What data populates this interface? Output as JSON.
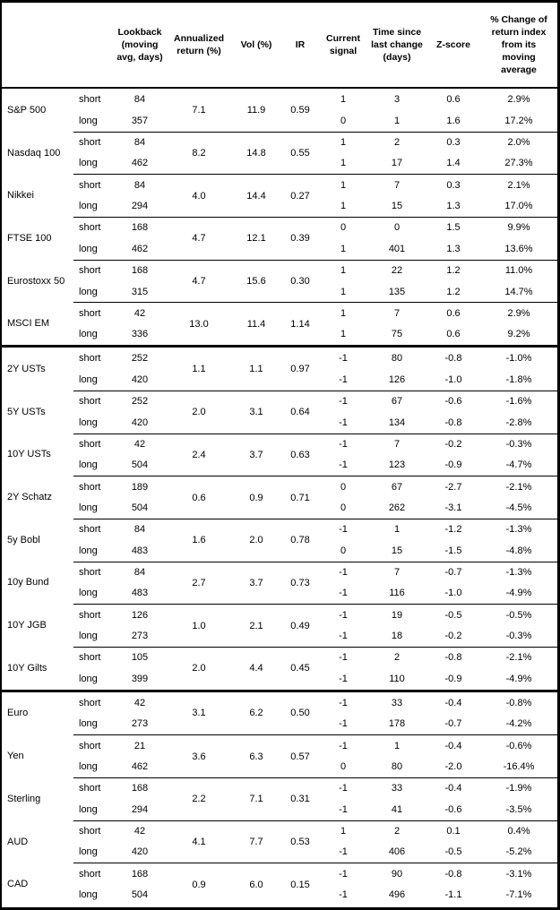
{
  "table": {
    "headers": {
      "asset": "",
      "horizon": "",
      "lookback": "Lookback\n(moving\navg, days)",
      "annualized_return": "Annualized\nreturn (%)",
      "vol": "Vol (%)",
      "ir": "IR",
      "current_signal": "Current\nsignal",
      "time_since": "Time since\nlast change\n(days)",
      "zscore": "Z-score",
      "pct_change": "% Change of\nreturn index\nfrom its\nmoving\naverage"
    },
    "row_labels": {
      "short": "short",
      "long": "long"
    },
    "sections": [
      {
        "id": "equities",
        "assets": [
          {
            "name": "S&P 500",
            "annualized_return": "7.1",
            "vol": "11.9",
            "ir": "0.59",
            "short": {
              "lookback": "84",
              "signal": "1",
              "time_since": "3",
              "zscore": "0.6",
              "pct_change": "2.9%"
            },
            "long": {
              "lookback": "357",
              "signal": "0",
              "time_since": "1",
              "zscore": "1.6",
              "pct_change": "17.2%"
            }
          },
          {
            "name": "Nasdaq 100",
            "annualized_return": "8.2",
            "vol": "14.8",
            "ir": "0.55",
            "short": {
              "lookback": "84",
              "signal": "1",
              "time_since": "2",
              "zscore": "0.3",
              "pct_change": "2.0%"
            },
            "long": {
              "lookback": "462",
              "signal": "1",
              "time_since": "17",
              "zscore": "1.4",
              "pct_change": "27.3%"
            }
          },
          {
            "name": "Nikkei",
            "annualized_return": "4.0",
            "vol": "14.4",
            "ir": "0.27",
            "short": {
              "lookback": "84",
              "signal": "1",
              "time_since": "7",
              "zscore": "0.3",
              "pct_change": "2.1%"
            },
            "long": {
              "lookback": "294",
              "signal": "1",
              "time_since": "15",
              "zscore": "1.3",
              "pct_change": "17.0%"
            }
          },
          {
            "name": "FTSE 100",
            "annualized_return": "4.7",
            "vol": "12.1",
            "ir": "0.39",
            "short": {
              "lookback": "168",
              "signal": "0",
              "time_since": "0",
              "zscore": "1.5",
              "pct_change": "9.9%"
            },
            "long": {
              "lookback": "462",
              "signal": "1",
              "time_since": "401",
              "zscore": "1.3",
              "pct_change": "13.6%"
            }
          },
          {
            "name": "Eurostoxx 50",
            "annualized_return": "4.7",
            "vol": "15.6",
            "ir": "0.30",
            "short": {
              "lookback": "168",
              "signal": "1",
              "time_since": "22",
              "zscore": "1.2",
              "pct_change": "11.0%"
            },
            "long": {
              "lookback": "315",
              "signal": "1",
              "time_since": "135",
              "zscore": "1.2",
              "pct_change": "14.7%"
            }
          },
          {
            "name": "MSCI EM",
            "annualized_return": "13.0",
            "vol": "11.4",
            "ir": "1.14",
            "short": {
              "lookback": "42",
              "signal": "1",
              "time_since": "7",
              "zscore": "0.6",
              "pct_change": "2.9%"
            },
            "long": {
              "lookback": "336",
              "signal": "1",
              "time_since": "75",
              "zscore": "0.6",
              "pct_change": "9.2%"
            }
          }
        ]
      },
      {
        "id": "bonds",
        "assets": [
          {
            "name": "2Y USTs",
            "annualized_return": "1.1",
            "vol": "1.1",
            "ir": "0.97",
            "short": {
              "lookback": "252",
              "signal": "-1",
              "time_since": "80",
              "zscore": "-0.8",
              "pct_change": "-1.0%"
            },
            "long": {
              "lookback": "420",
              "signal": "-1",
              "time_since": "126",
              "zscore": "-1.0",
              "pct_change": "-1.8%"
            }
          },
          {
            "name": "5Y USTs",
            "annualized_return": "2.0",
            "vol": "3.1",
            "ir": "0.64",
            "short": {
              "lookback": "252",
              "signal": "-1",
              "time_since": "67",
              "zscore": "-0.6",
              "pct_change": "-1.6%"
            },
            "long": {
              "lookback": "420",
              "signal": "-1",
              "time_since": "134",
              "zscore": "-0.8",
              "pct_change": "-2.8%"
            }
          },
          {
            "name": "10Y USTs",
            "annualized_return": "2.4",
            "vol": "3.7",
            "ir": "0.63",
            "short": {
              "lookback": "42",
              "signal": "-1",
              "time_since": "7",
              "zscore": "-0.2",
              "pct_change": "-0.3%"
            },
            "long": {
              "lookback": "504",
              "signal": "-1",
              "time_since": "123",
              "zscore": "-0.9",
              "pct_change": "-4.7%"
            }
          },
          {
            "name": "2Y Schatz",
            "annualized_return": "0.6",
            "vol": "0.9",
            "ir": "0.71",
            "short": {
              "lookback": "189",
              "signal": "0",
              "time_since": "67",
              "zscore": "-2.7",
              "pct_change": "-2.1%"
            },
            "long": {
              "lookback": "504",
              "signal": "0",
              "time_since": "262",
              "zscore": "-3.1",
              "pct_change": "-4.5%"
            }
          },
          {
            "name": "5y Bobl",
            "annualized_return": "1.6",
            "vol": "2.0",
            "ir": "0.78",
            "short": {
              "lookback": "84",
              "signal": "-1",
              "time_since": "1",
              "zscore": "-1.2",
              "pct_change": "-1.3%"
            },
            "long": {
              "lookback": "483",
              "signal": "0",
              "time_since": "15",
              "zscore": "-1.5",
              "pct_change": "-4.8%"
            }
          },
          {
            "name": "10y Bund",
            "annualized_return": "2.7",
            "vol": "3.7",
            "ir": "0.73",
            "short": {
              "lookback": "84",
              "signal": "-1",
              "time_since": "7",
              "zscore": "-0.7",
              "pct_change": "-1.3%"
            },
            "long": {
              "lookback": "483",
              "signal": "-1",
              "time_since": "116",
              "zscore": "-1.0",
              "pct_change": "-4.9%"
            }
          },
          {
            "name": "10Y JGB",
            "annualized_return": "1.0",
            "vol": "2.1",
            "ir": "0.49",
            "short": {
              "lookback": "126",
              "signal": "-1",
              "time_since": "19",
              "zscore": "-0.5",
              "pct_change": "-0.5%"
            },
            "long": {
              "lookback": "273",
              "signal": "-1",
              "time_since": "18",
              "zscore": "-0.2",
              "pct_change": "-0.3%"
            }
          },
          {
            "name": "10Y Gilts",
            "annualized_return": "2.0",
            "vol": "4.4",
            "ir": "0.45",
            "short": {
              "lookback": "105",
              "signal": "-1",
              "time_since": "2",
              "zscore": "-0.8",
              "pct_change": "-2.1%"
            },
            "long": {
              "lookback": "399",
              "signal": "-1",
              "time_since": "110",
              "zscore": "-0.9",
              "pct_change": "-4.9%"
            }
          }
        ]
      },
      {
        "id": "fx",
        "assets": [
          {
            "name": "Euro",
            "annualized_return": "3.1",
            "vol": "6.2",
            "ir": "0.50",
            "short": {
              "lookback": "42",
              "signal": "-1",
              "time_since": "33",
              "zscore": "-0.4",
              "pct_change": "-0.8%"
            },
            "long": {
              "lookback": "273",
              "signal": "-1",
              "time_since": "178",
              "zscore": "-0.7",
              "pct_change": "-4.2%"
            }
          },
          {
            "name": "Yen",
            "annualized_return": "3.6",
            "vol": "6.3",
            "ir": "0.57",
            "short": {
              "lookback": "21",
              "signal": "-1",
              "time_since": "1",
              "zscore": "-0.4",
              "pct_change": "-0.6%"
            },
            "long": {
              "lookback": "462",
              "signal": "0",
              "time_since": "80",
              "zscore": "-2.0",
              "pct_change": "-16.4%"
            }
          },
          {
            "name": "Sterling",
            "annualized_return": "2.2",
            "vol": "7.1",
            "ir": "0.31",
            "short": {
              "lookback": "168",
              "signal": "-1",
              "time_since": "33",
              "zscore": "-0.4",
              "pct_change": "-1.9%"
            },
            "long": {
              "lookback": "294",
              "signal": "-1",
              "time_since": "41",
              "zscore": "-0.6",
              "pct_change": "-3.5%"
            }
          },
          {
            "name": "AUD",
            "annualized_return": "4.1",
            "vol": "7.7",
            "ir": "0.53",
            "short": {
              "lookback": "42",
              "signal": "1",
              "time_since": "2",
              "zscore": "0.1",
              "pct_change": "0.4%"
            },
            "long": {
              "lookback": "420",
              "signal": "-1",
              "time_since": "406",
              "zscore": "-0.5",
              "pct_change": "-5.2%"
            }
          },
          {
            "name": "CAD",
            "annualized_return": "0.9",
            "vol": "6.0",
            "ir": "0.15",
            "short": {
              "lookback": "168",
              "signal": "-1",
              "time_since": "90",
              "zscore": "-0.8",
              "pct_change": "-3.1%"
            },
            "long": {
              "lookback": "504",
              "signal": "-1",
              "time_since": "496",
              "zscore": "-1.1",
              "pct_change": "-7.1%"
            }
          }
        ]
      }
    ]
  }
}
